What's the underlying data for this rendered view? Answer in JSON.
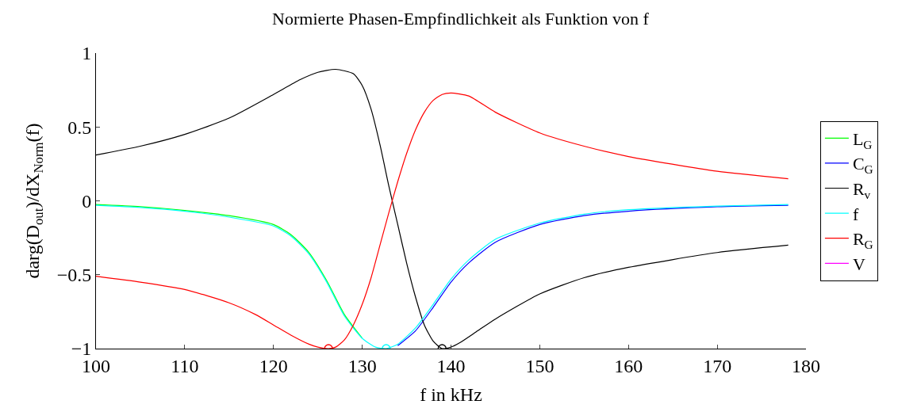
{
  "chart_data": {
    "type": "line",
    "title": "Normierte Phasen-Empfindlichkeit als Funktion von f",
    "xlabel": "f in kHz",
    "ylabel": "darg(D$_{out}$)/dX$_{Norm}$(f)",
    "xlim": [
      100,
      180
    ],
    "xticks": [
      100,
      110,
      120,
      130,
      140,
      150,
      160,
      170,
      180
    ],
    "ylim": [
      -1,
      1
    ],
    "yticks": [
      {
        "value": -1,
        "label": "−1"
      },
      {
        "value": -0.5,
        "label": "−0.5"
      },
      0,
      0.5,
      1
    ],
    "legend": "right",
    "marker": "none",
    "line_style": "solid",
    "x": [
      100,
      105,
      110,
      115,
      120,
      122,
      124,
      126,
      128,
      130,
      131.5,
      132.7,
      134,
      136,
      138,
      140,
      142,
      145,
      150,
      155,
      160,
      170,
      178
    ],
    "series": [
      {
        "name": "L$_{G}$",
        "color": "#00ff00",
        "values": [
          -0.025,
          -0.04,
          -0.065,
          -0.1,
          -0.16,
          -0.23,
          -0.35,
          -0.54,
          -0.77,
          -0.93,
          null,
          null,
          null,
          null,
          null,
          null,
          null,
          null,
          null,
          null,
          null,
          null,
          null
        ]
      },
      {
        "name": "C$_{G}$",
        "color": "#0000ff",
        "values": [
          null,
          null,
          null,
          null,
          null,
          null,
          null,
          null,
          null,
          null,
          null,
          null,
          -0.98,
          -0.88,
          -0.72,
          -0.55,
          -0.42,
          -0.28,
          -0.16,
          -0.1,
          -0.07,
          -0.04,
          -0.03
        ]
      },
      {
        "name": "R$_{v}$",
        "color": "#000000",
        "x": [
          100,
          105,
          110,
          115,
          120,
          123,
          125,
          127,
          129,
          130,
          131,
          132,
          133,
          134,
          135,
          136,
          137,
          138,
          139,
          140,
          141,
          143,
          145,
          150,
          155,
          160,
          170,
          178
        ],
        "values": [
          0.31,
          0.37,
          0.45,
          0.56,
          0.72,
          0.82,
          0.87,
          0.89,
          0.86,
          0.78,
          0.62,
          0.38,
          0.1,
          -0.16,
          -0.42,
          -0.65,
          -0.84,
          -0.95,
          -1,
          -0.99,
          -0.96,
          -0.88,
          -0.8,
          -0.63,
          -0.52,
          -0.45,
          -0.35,
          -0.3
        ]
      },
      {
        "name": "f",
        "color": "#00ffff",
        "values": [
          -0.03,
          -0.045,
          -0.07,
          -0.11,
          -0.17,
          -0.24,
          -0.36,
          -0.55,
          -0.78,
          -0.93,
          -0.99,
          -1,
          -0.97,
          -0.86,
          -0.7,
          -0.53,
          -0.4,
          -0.26,
          -0.15,
          -0.09,
          -0.06,
          -0.035,
          -0.025
        ]
      },
      {
        "name": "R$_{G}$",
        "color": "#ff0000",
        "x": [
          100,
          105,
          110,
          115,
          118,
          120,
          122,
          124,
          125,
          126.2,
          127,
          128,
          129,
          130,
          131,
          132,
          133,
          134,
          135,
          136,
          137,
          138,
          139,
          140,
          142,
          145,
          150,
          155,
          160,
          170,
          178
        ],
        "values": [
          -0.51,
          -0.55,
          -0.6,
          -0.69,
          -0.77,
          -0.84,
          -0.91,
          -0.97,
          -0.99,
          -1,
          -0.99,
          -0.94,
          -0.84,
          -0.7,
          -0.52,
          -0.3,
          -0.08,
          0.13,
          0.32,
          0.48,
          0.6,
          0.68,
          0.72,
          0.73,
          0.71,
          0.6,
          0.46,
          0.37,
          0.3,
          0.2,
          0.15
        ]
      },
      {
        "name": "V",
        "color": "#ff00ff",
        "values": [
          null,
          null,
          null,
          null,
          null,
          null,
          null,
          null,
          null,
          null,
          null,
          null,
          null,
          null,
          null,
          null,
          null,
          null,
          null,
          null,
          null,
          null,
          null
        ]
      },
      {
        "type": "scatter",
        "marker": "circle",
        "x": [
          126.2,
          132.7,
          139
        ],
        "values": [
          -1,
          -1,
          -1
        ],
        "colors": [
          "#ff0000",
          "#00ffff",
          "#000000"
        ]
      }
    ]
  }
}
